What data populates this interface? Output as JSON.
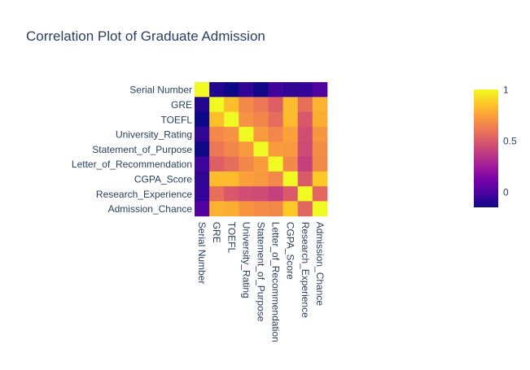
{
  "chart_data": {
    "type": "heatmap",
    "title": "Correlation Plot of Graduate Admission",
    "categories": [
      "Serial Number",
      "GRE",
      "TOEFL",
      "University_Rating",
      "Statement_of_Purpose",
      "Letter_of_Recommendation",
      "CGPA_Score",
      "Research_Experience",
      "Admission_Chance"
    ],
    "z": [
      [
        1.0,
        -0.1,
        -0.15,
        -0.07,
        -0.14,
        -0.04,
        -0.07,
        -0.06,
        0.01
      ],
      [
        -0.1,
        1.0,
        0.84,
        0.67,
        0.61,
        0.52,
        0.83,
        0.58,
        0.8
      ],
      [
        -0.15,
        0.84,
        1.0,
        0.7,
        0.66,
        0.57,
        0.83,
        0.49,
        0.79
      ],
      [
        -0.07,
        0.67,
        0.7,
        1.0,
        0.73,
        0.66,
        0.75,
        0.45,
        0.71
      ],
      [
        -0.14,
        0.61,
        0.66,
        0.73,
        1.0,
        0.73,
        0.72,
        0.44,
        0.68
      ],
      [
        -0.04,
        0.52,
        0.57,
        0.66,
        0.73,
        1.0,
        0.67,
        0.4,
        0.67
      ],
      [
        -0.07,
        0.83,
        0.83,
        0.75,
        0.72,
        0.67,
        1.0,
        0.5,
        0.87
      ],
      [
        -0.06,
        0.58,
        0.49,
        0.45,
        0.44,
        0.4,
        0.5,
        1.0,
        0.55
      ],
      [
        0.01,
        0.8,
        0.79,
        0.71,
        0.68,
        0.67,
        0.87,
        0.55,
        1.0
      ]
    ],
    "zmin": -0.15,
    "zmax": 1.0,
    "colorbar": {
      "ticks": [
        0,
        0.5,
        1
      ],
      "tick_labels": [
        "0",
        "0.5",
        "1"
      ]
    },
    "colorscale": [
      "#0d0887",
      "#46039f",
      "#7201a8",
      "#9c179e",
      "#bd3786",
      "#d8576b",
      "#ed7953",
      "#fb9f3a",
      "#fdca26",
      "#f0f921"
    ]
  }
}
